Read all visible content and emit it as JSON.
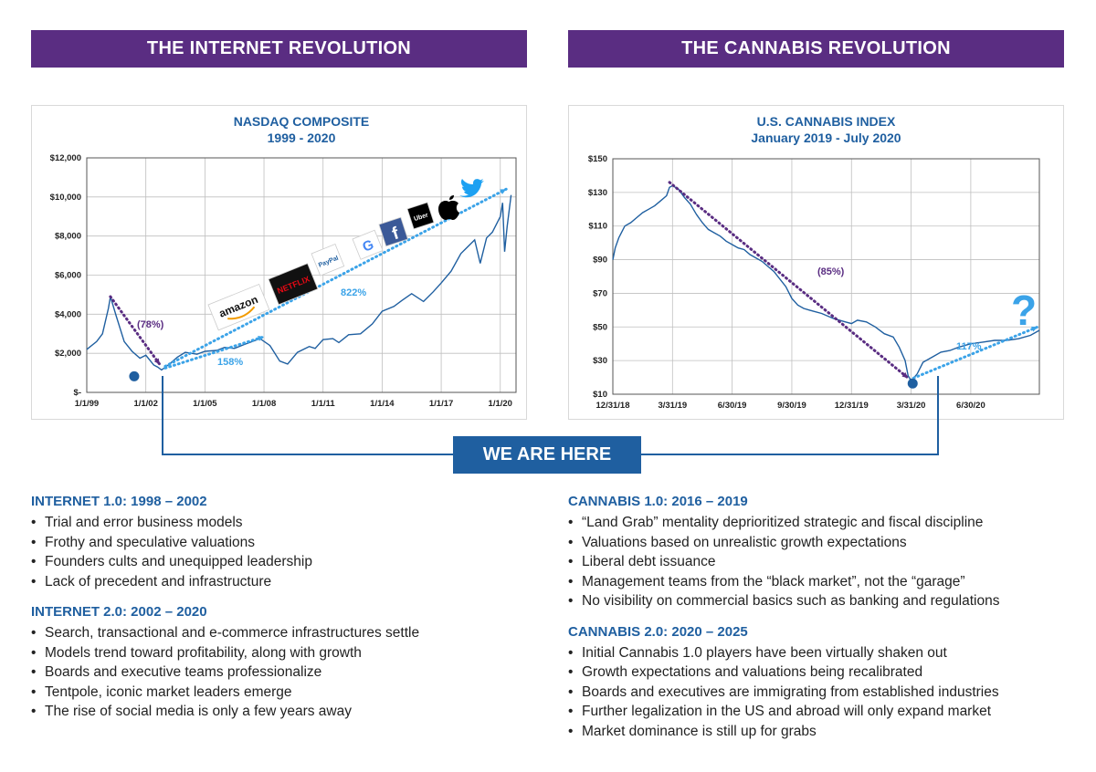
{
  "banners": {
    "left": "THE INTERNET REVOLUTION",
    "right": "THE CANNABIS REVOLUTION"
  },
  "we_are_here": "WE ARE HERE",
  "colors": {
    "purple": "#5a2d82",
    "blue": "#1f5fa0",
    "light_blue": "#3ba3e8",
    "line": "#1f5fa0"
  },
  "chart_data": [
    {
      "type": "line",
      "title": "NASDAQ COMPOSITE",
      "subtitle": "1999 - 2020",
      "ylim": [
        0,
        12000
      ],
      "ytick_labels": [
        "$-",
        "$2,000",
        "$4,000",
        "$6,000",
        "$8,000",
        "$10,000",
        "$12,000"
      ],
      "xtick_labels": [
        "1/1/99",
        "1/1/02",
        "1/1/05",
        "1/1/08",
        "1/1/11",
        "1/1/14",
        "1/1/17",
        "1/1/20"
      ],
      "x": [
        1999.0,
        1999.5,
        1999.8,
        2000.1,
        2000.2,
        2000.5,
        2000.9,
        2001.3,
        2001.7,
        2002.0,
        2002.4,
        2002.6,
        2002.8,
        2003.2,
        2003.6,
        2004.0,
        2004.6,
        2005.0,
        2005.6,
        2006.0,
        2006.5,
        2007.0,
        2007.8,
        2008.3,
        2008.8,
        2009.2,
        2009.7,
        2010.3,
        2010.6,
        2011.0,
        2011.5,
        2011.8,
        2012.3,
        2012.9,
        2013.5,
        2014.0,
        2014.6,
        2015.0,
        2015.5,
        2016.1,
        2016.6,
        2017.0,
        2017.5,
        2018.0,
        2018.7,
        2018.98,
        2019.3,
        2019.6,
        2020.0,
        2020.12,
        2020.22,
        2020.35,
        2020.55
      ],
      "y": [
        2200,
        2600,
        3000,
        4300,
        4900,
        3900,
        2600,
        2100,
        1750,
        1900,
        1400,
        1300,
        1150,
        1450,
        1800,
        2050,
        1950,
        2100,
        2150,
        2300,
        2250,
        2450,
        2750,
        2400,
        1600,
        1450,
        2050,
        2350,
        2250,
        2700,
        2750,
        2550,
        2950,
        3000,
        3500,
        4150,
        4400,
        4700,
        5050,
        4650,
        5150,
        5600,
        6200,
        7100,
        7800,
        6600,
        7900,
        8200,
        9000,
        9700,
        7200,
        8500,
        10100
      ],
      "annotations": [
        {
          "text": "(78%)",
          "color": "#5a2d82"
        },
        {
          "text": "158%",
          "color": "#3ba3e8"
        },
        {
          "text": "822%",
          "color": "#3ba3e8"
        }
      ],
      "logos": [
        "amazon-logo",
        "netflix-logo",
        "paypal-logo",
        "google-logo",
        "facebook-logo",
        "uber-logo",
        "apple-logo",
        "twitter-logo"
      ],
      "logo_texts": {
        "amazon": "amazon",
        "netflix": "NETFLIX",
        "paypal": "PayPal",
        "google": "G",
        "facebook": "f",
        "uber": "Uber"
      }
    },
    {
      "type": "line",
      "title": "U.S. CANNABIS INDEX",
      "subtitle": "January 2019 - July 2020",
      "ylim": [
        10,
        150
      ],
      "ytick_labels": [
        "$10",
        "$30",
        "$50",
        "$70",
        "$90",
        "$110",
        "$130",
        "$150"
      ],
      "xtick_labels": [
        "12/31/18",
        "3/31/19",
        "6/30/19",
        "9/30/19",
        "12/31/19",
        "3/31/20",
        "6/30/20"
      ],
      "x": [
        0,
        0.04,
        0.1,
        0.2,
        0.3,
        0.4,
        0.5,
        0.6,
        0.7,
        0.8,
        0.9,
        0.95,
        1.0,
        1.1,
        1.2,
        1.3,
        1.4,
        1.5,
        1.6,
        1.7,
        1.8,
        1.9,
        2.0,
        2.1,
        2.2,
        2.3,
        2.5,
        2.7,
        2.9,
        3.0,
        3.1,
        3.2,
        3.3,
        3.5,
        3.7,
        3.9,
        4.0,
        4.1,
        4.25,
        4.4,
        4.55,
        4.7,
        4.8,
        4.9,
        4.95,
        5.0,
        5.1,
        5.2,
        5.35,
        5.5,
        5.65,
        5.8,
        6.0,
        6.2,
        6.4,
        6.6,
        6.8,
        7.0,
        7.15
      ],
      "y": [
        90,
        97,
        103,
        110,
        112,
        115,
        118,
        120,
        122,
        125,
        128,
        133,
        134,
        132,
        127,
        123,
        117,
        112,
        108,
        106,
        104,
        101,
        99,
        97,
        96,
        93,
        89,
        83,
        74,
        67,
        63,
        61,
        60,
        58,
        55,
        53,
        52,
        54,
        53,
        50,
        46,
        44,
        38,
        30,
        21,
        18,
        22,
        29,
        32,
        35,
        36,
        38,
        40,
        41,
        42,
        42,
        43,
        45,
        48
      ],
      "annotations": [
        {
          "text": "(85%)",
          "color": "#5a2d82"
        },
        {
          "text": "117%",
          "color": "#3ba3e8"
        },
        {
          "text": "?",
          "color": "#3ba3e8"
        }
      ]
    }
  ],
  "left_sections": [
    {
      "heading": "INTERNET 1.0: 1998 – 2002",
      "items": [
        "Trial and error business models",
        "Frothy and speculative valuations",
        "Founders cults and unequipped leadership",
        "Lack of precedent and infrastructure"
      ]
    },
    {
      "heading": "INTERNET 2.0: 2002 – 2020",
      "items": [
        "Search, transactional and e-commerce infrastructures settle",
        "Models trend toward profitability, along with growth",
        "Boards and executive teams professionalize",
        "Tentpole, iconic market leaders emerge",
        "The rise of social media is only a few years away"
      ]
    }
  ],
  "right_sections": [
    {
      "heading": "CANNABIS 1.0: 2016 – 2019",
      "items": [
        "“Land Grab” mentality deprioritized strategic and fiscal discipline",
        "Valuations based on unrealistic growth expectations",
        "Liberal debt issuance",
        "Management teams from the “black market”, not the “garage”",
        "No visibility on commercial basics such as banking and regulations"
      ]
    },
    {
      "heading": "CANNABIS 2.0: 2020 – 2025",
      "items": [
        "Initial Cannabis 1.0 players have been virtually shaken out",
        "Growth expectations and valuations being recalibrated",
        "Boards and executives are immigrating from established industries",
        "Further legalization in the US and abroad will only expand market",
        "Market dominance is still up for grabs"
      ]
    }
  ]
}
